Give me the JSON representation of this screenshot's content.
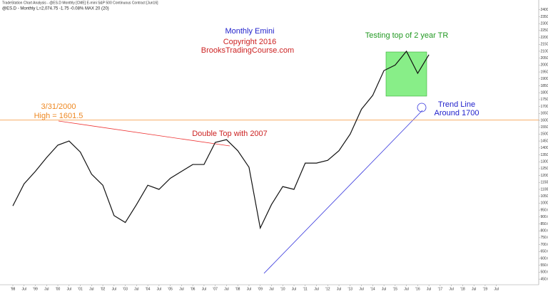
{
  "chart_data": {
    "type": "line",
    "header": [
      "TradeStation Chart Analysis - @ES.D Monthly [CME] E-mini S&P 500 Continuous Contract [Jun16]",
      "@ES.D - Monthly  L=2,074.75  -1.75  -0.08%  MAX 20 (20)"
    ],
    "title": "Monthly Emini",
    "subtitle": [
      "Copyright 2016",
      "BrooksTradingCourse.com"
    ],
    "annotations": {
      "range_note": "Testing top of 2 year TR",
      "high_note": [
        "3/31/2000",
        "High = 1601.5"
      ],
      "double_top_note": "Double Top with 2007",
      "trend_note": [
        "Trend Line",
        "Around 1700"
      ]
    },
    "reference_line": {
      "value": 1601.5,
      "color": "#f5a050"
    },
    "categories": [
      "'98",
      "Jul",
      "'99",
      "Jul",
      "'00",
      "Jul",
      "'01",
      "Jul",
      "'02",
      "Jul",
      "'03",
      "Jul",
      "'04",
      "Jul",
      "'05",
      "Jul",
      "'06",
      "Jul",
      "'07",
      "Jul",
      "'08",
      "Jul",
      "'09",
      "Jul",
      "'10",
      "Jul",
      "'11",
      "Jul",
      "'12",
      "Jul",
      "'13",
      "Jul",
      "'14",
      "Jul",
      "'15",
      "Jul",
      "'16",
      "Jul",
      "'17",
      "Jul",
      "'18",
      "Jul",
      "'19",
      "Jul"
    ],
    "series": [
      {
        "name": "@ES.D",
        "color": "#111111",
        "values": [
          980,
          1140,
          1230,
          1330,
          1420,
          1450,
          1370,
          1210,
          1130,
          910,
          860,
          990,
          1130,
          1100,
          1180,
          1230,
          1280,
          1280,
          1440,
          1460,
          1380,
          1260,
          820,
          990,
          1120,
          1100,
          1290,
          1290,
          1310,
          1380,
          1500,
          1680,
          1780,
          1960,
          2000,
          2100,
          1940,
          2075,
          null,
          null,
          null,
          null,
          null,
          null
        ]
      }
    ],
    "ylim": [
      430,
      2440
    ],
    "yticks": [
      {
        "value": 450,
        "label": "450.00"
      },
      {
        "value": 500,
        "label": "500.00"
      },
      {
        "value": 550,
        "label": "550.00"
      },
      {
        "value": 600,
        "label": "600.00"
      },
      {
        "value": 650,
        "label": "650.00"
      },
      {
        "value": 700,
        "label": "700.00"
      },
      {
        "value": 750,
        "label": "750.00"
      },
      {
        "value": 800,
        "label": "800.00"
      },
      {
        "value": 850,
        "label": "850.00"
      },
      {
        "value": 900,
        "label": "900.00"
      },
      {
        "value": 950,
        "label": "950.00"
      },
      {
        "value": 1000,
        "label": "1000.00"
      },
      {
        "value": 1050,
        "label": "1050.00"
      },
      {
        "value": 1100,
        "label": "1100.00"
      },
      {
        "value": 1150,
        "label": "1150.00"
      },
      {
        "value": 1200,
        "label": "1200.00"
      },
      {
        "value": 1250,
        "label": "1250.00"
      },
      {
        "value": 1300,
        "label": "1300.00"
      },
      {
        "value": 1350,
        "label": "1350.00"
      },
      {
        "value": 1400,
        "label": "1400.00"
      },
      {
        "value": 1450,
        "label": "1450.00"
      },
      {
        "value": 1500,
        "label": "1500.00"
      },
      {
        "value": 1550,
        "label": "1550.00"
      },
      {
        "value": 1600,
        "label": "1600.00"
      },
      {
        "value": 1650,
        "label": "1650.00"
      },
      {
        "value": 1700,
        "label": "1700.00"
      },
      {
        "value": 1750,
        "label": "1750.00"
      },
      {
        "value": 1800,
        "label": "1800.00"
      },
      {
        "value": 1850,
        "label": "1850.00"
      },
      {
        "value": 1900,
        "label": "1900.00"
      },
      {
        "value": 1950,
        "label": "1950.00"
      },
      {
        "value": 2000,
        "label": "2000.00"
      },
      {
        "value": 2050,
        "label": "2050.00"
      },
      {
        "value": 2100,
        "label": "2100.00"
      },
      {
        "value": 2150,
        "label": "2150.00"
      },
      {
        "value": 2200,
        "label": "2200.00"
      },
      {
        "value": 2250,
        "label": "2250.00"
      },
      {
        "value": 2300,
        "label": "2300.00"
      },
      {
        "value": 2350,
        "label": "2350.00"
      },
      {
        "value": 2400,
        "label": "2400.00"
      }
    ],
    "grid": false
  }
}
